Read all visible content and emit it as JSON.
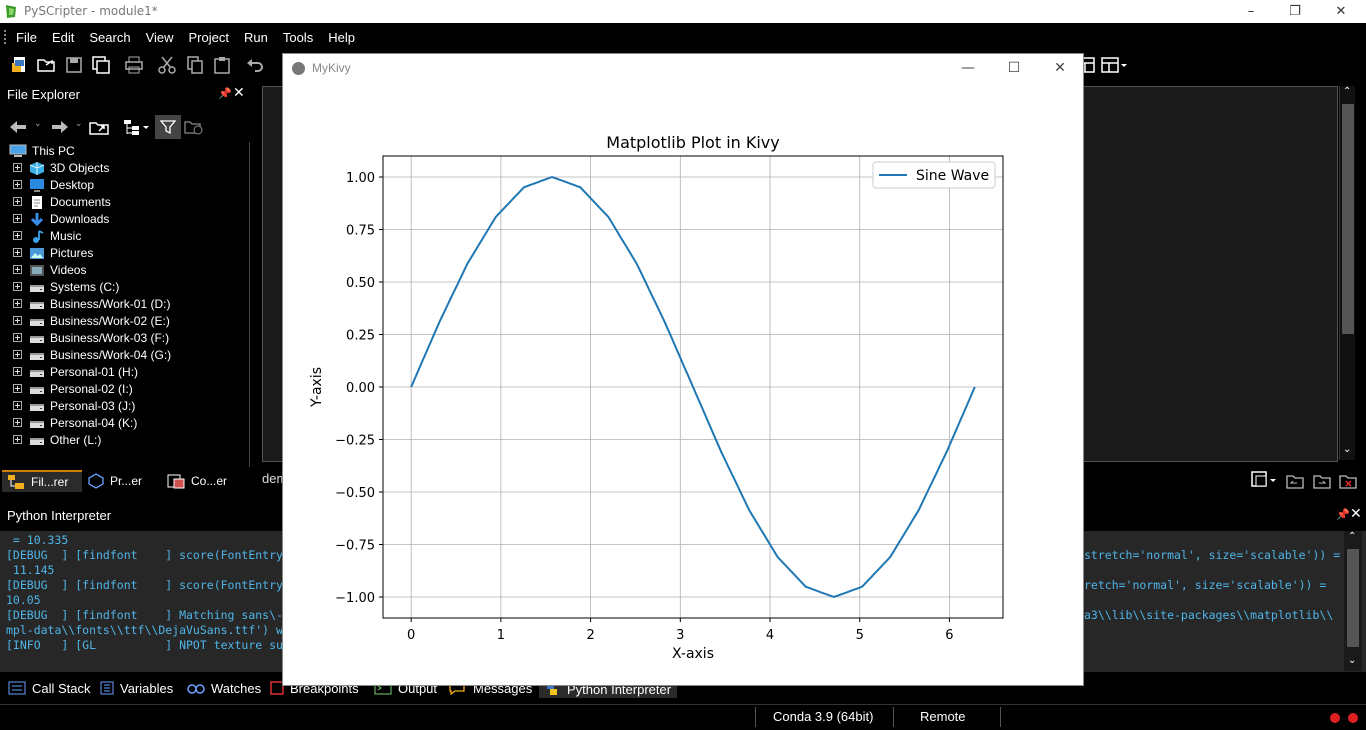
{
  "titlebar": {
    "title": "PySCripter - module1*",
    "minimize": "–",
    "restore": "❐",
    "close": "✕"
  },
  "menu": [
    "File",
    "Edit",
    "Search",
    "View",
    "Project",
    "Run",
    "Tools",
    "Help"
  ],
  "file_explorer": {
    "title": "File Explorer",
    "root": "This PC",
    "items": [
      {
        "label": "3D Objects",
        "icon": "cube-icon"
      },
      {
        "label": "Desktop",
        "icon": "desktop-icon"
      },
      {
        "label": "Documents",
        "icon": "documents-icon"
      },
      {
        "label": "Downloads",
        "icon": "download-icon"
      },
      {
        "label": "Music",
        "icon": "music-icon"
      },
      {
        "label": "Pictures",
        "icon": "pictures-icon"
      },
      {
        "label": "Videos",
        "icon": "videos-icon"
      },
      {
        "label": "Systems (C:)",
        "icon": "drive-icon"
      },
      {
        "label": "Business/Work-01 (D:)",
        "icon": "drive-icon"
      },
      {
        "label": "Business/Work-02 (E:)",
        "icon": "drive-icon"
      },
      {
        "label": "Business/Work-03 (F:)",
        "icon": "drive-icon"
      },
      {
        "label": "Business/Work-04 (G:)",
        "icon": "drive-icon"
      },
      {
        "label": "Personal-01 (H:)",
        "icon": "drive-icon"
      },
      {
        "label": "Personal-02 (I:)",
        "icon": "drive-icon"
      },
      {
        "label": "Personal-03 (J:)",
        "icon": "drive-icon"
      },
      {
        "label": "Personal-04 (K:)",
        "icon": "drive-icon"
      },
      {
        "label": "Other (L:)",
        "icon": "drive-icon"
      }
    ],
    "tabs": [
      "Fil...rer",
      "Pr...er",
      "Co...er"
    ]
  },
  "editor": {
    "tab_label": "dem"
  },
  "interpreter": {
    "title": "Python Interpreter",
    "lines_left": [
      " = 10.335",
      "[DEBUG  ] [findfont    ] score(FontEntry",
      " 11.145",
      "[DEBUG  ] [findfont    ] score(FontEntry",
      "10.05",
      "[DEBUG  ] [findfont    ] Matching sans\\-",
      "mpl-data\\\\fonts\\\\ttf\\\\DejaVuSans.ttf') w",
      "[INFO   ] [GL          ] NPOT texture su"
    ],
    "lines_right": [
      "",
      "stretch='normal', size='scalable')) =",
      "",
      "retch='normal', size='scalable')) =",
      "",
      "a3\\\\lib\\\\site-packages\\\\matplotlib\\\\",
      "",
      ""
    ]
  },
  "bottom_tabs": [
    "Call Stack",
    "Variables",
    "Watches",
    "Breakpoints",
    "Output",
    "Messages",
    "Python Interpreter"
  ],
  "status": {
    "env": "Conda 3.9 (64bit)",
    "mode": "Remote"
  },
  "kivy": {
    "title": "MyKivy",
    "minimize": "—",
    "maximize": "☐",
    "close": "✕"
  },
  "chart_data": {
    "type": "line",
    "title": "Matplotlib Plot in Kivy",
    "xlabel": "X-axis",
    "ylabel": "Y-axis",
    "xlim": [
      -0.314,
      6.597
    ],
    "ylim": [
      -1.1,
      1.1
    ],
    "xticks": [
      0,
      1,
      2,
      3,
      4,
      5,
      6
    ],
    "yticks": [
      1.0,
      0.75,
      0.5,
      0.25,
      0.0,
      -0.25,
      -0.5,
      -0.75,
      -1.0
    ],
    "ytick_labels": [
      "1.00",
      "0.75",
      "0.50",
      "0.25",
      "0.00",
      "−0.25",
      "−0.50",
      "−0.75",
      "−1.00"
    ],
    "grid": true,
    "legend": "top-right",
    "series": [
      {
        "name": "Sine Wave",
        "color": "#1f77b4",
        "x": [
          0,
          0.314,
          0.628,
          0.942,
          1.257,
          1.571,
          1.885,
          2.199,
          2.513,
          2.827,
          3.142,
          3.456,
          3.77,
          4.084,
          4.398,
          4.712,
          5.027,
          5.341,
          5.655,
          5.969,
          6.283
        ],
        "y": [
          0,
          0.309,
          0.588,
          0.809,
          0.951,
          1.0,
          0.951,
          0.809,
          0.588,
          0.309,
          0,
          -0.309,
          -0.588,
          -0.809,
          -0.951,
          -1.0,
          -0.951,
          -0.809,
          -0.588,
          -0.309,
          0
        ]
      }
    ]
  }
}
